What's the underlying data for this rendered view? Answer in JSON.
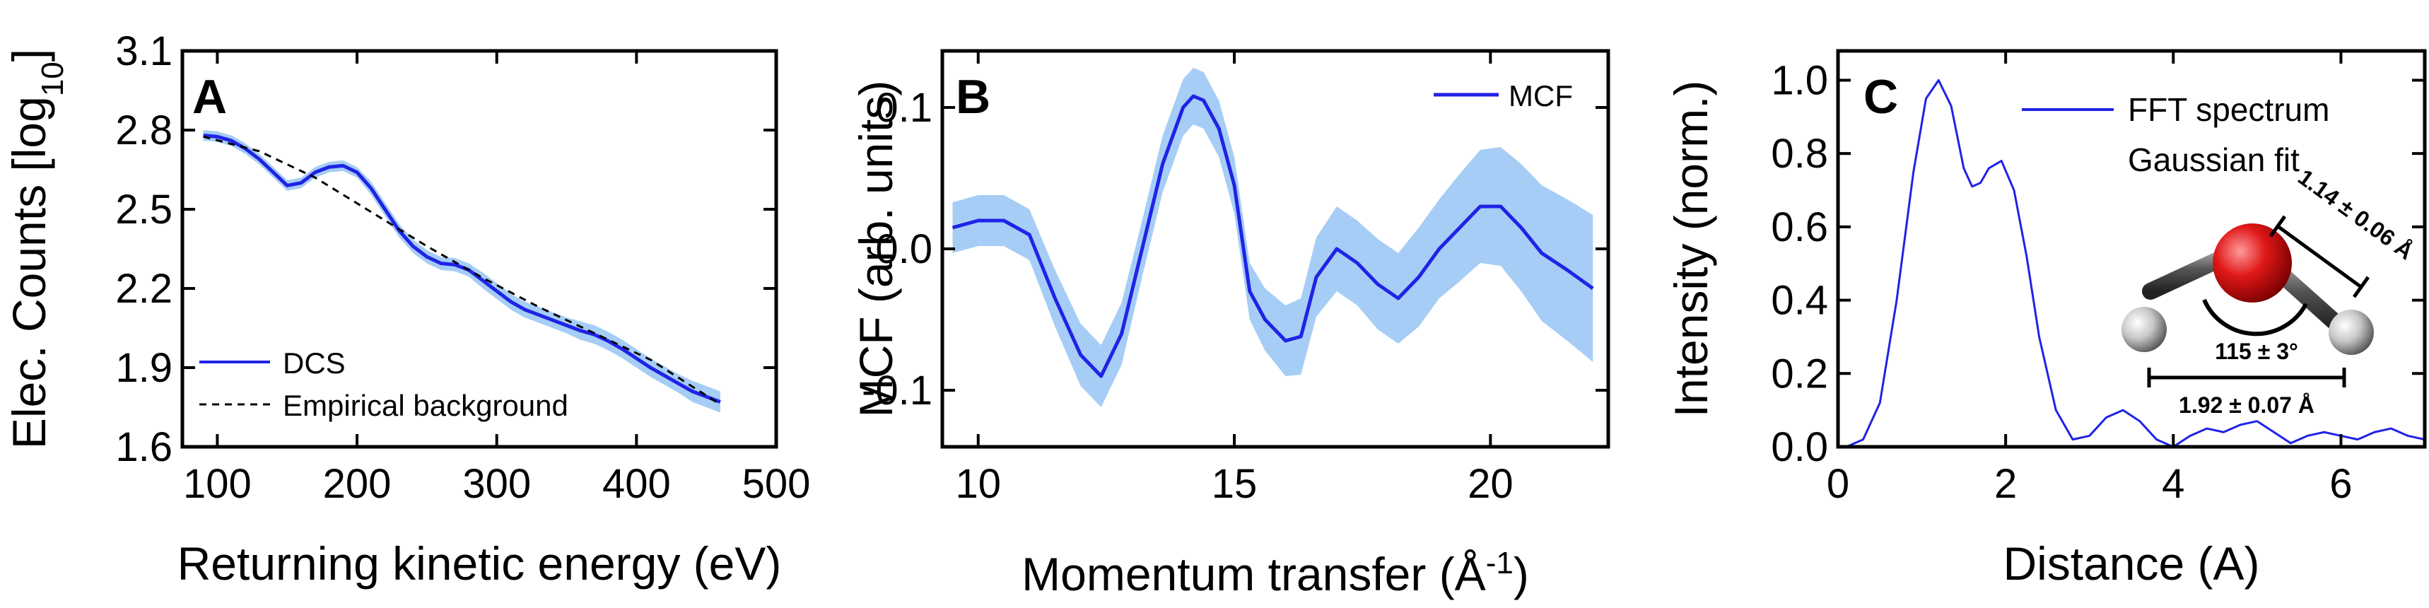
{
  "colors": {
    "line": "#1f23e6",
    "band": "#a6cdf5",
    "background_line": "#000000"
  },
  "chart_data": [
    {
      "type": "line",
      "panel_label": "A",
      "xlabel": "Returning kinetic energy (eV)",
      "ylabel_main": "Elec. Counts [log",
      "ylabel_sub": "10",
      "ylabel_end": "]",
      "xlim": [
        75,
        500
      ],
      "ylim": [
        1.6,
        3.1
      ],
      "x_ticks": [
        "100",
        "200",
        "300",
        "400",
        "500"
      ],
      "x_tick_values": [
        100,
        200,
        300,
        400,
        500
      ],
      "y_ticks": [
        "1.6",
        "1.9",
        "2.2",
        "2.5",
        "2.8",
        "3.1"
      ],
      "y_tick_values": [
        1.6,
        1.9,
        2.2,
        2.5,
        2.8,
        3.1
      ],
      "legend": {
        "position": "bottom-left",
        "entries": [
          "DCS",
          "Empirical background"
        ]
      },
      "series": [
        {
          "name": "DCS",
          "style": "solid-with-band",
          "x": [
            90,
            100,
            110,
            120,
            130,
            140,
            150,
            160,
            170,
            180,
            190,
            200,
            210,
            220,
            230,
            240,
            250,
            260,
            270,
            280,
            290,
            300,
            310,
            320,
            330,
            340,
            350,
            360,
            370,
            380,
            390,
            400,
            410,
            420,
            430,
            440,
            450,
            460
          ],
          "y": [
            2.78,
            2.775,
            2.76,
            2.73,
            2.69,
            2.64,
            2.59,
            2.6,
            2.64,
            2.66,
            2.665,
            2.64,
            2.58,
            2.5,
            2.42,
            2.36,
            2.32,
            2.295,
            2.29,
            2.27,
            2.23,
            2.19,
            2.15,
            2.12,
            2.1,
            2.08,
            2.06,
            2.04,
            2.025,
            2.0,
            1.97,
            1.935,
            1.9,
            1.87,
            1.84,
            1.81,
            1.79,
            1.77
          ],
          "band": [
            0.02,
            0.02,
            0.02,
            0.02,
            0.02,
            0.02,
            0.02,
            0.02,
            0.02,
            0.02,
            0.02,
            0.02,
            0.025,
            0.025,
            0.025,
            0.025,
            0.025,
            0.025,
            0.025,
            0.025,
            0.03,
            0.03,
            0.03,
            0.03,
            0.03,
            0.03,
            0.03,
            0.035,
            0.035,
            0.035,
            0.035,
            0.035,
            0.035,
            0.035,
            0.035,
            0.04,
            0.04,
            0.04
          ]
        },
        {
          "name": "Empirical background",
          "style": "dashed",
          "x": [
            90,
            130,
            170,
            210,
            250,
            290,
            330,
            370,
            410,
            460
          ],
          "y": [
            2.775,
            2.72,
            2.62,
            2.49,
            2.36,
            2.24,
            2.13,
            2.03,
            1.93,
            1.76
          ]
        }
      ]
    },
    {
      "type": "line",
      "panel_label": "B",
      "xlabel_main": "Momentum transfer (Å",
      "xlabel_sup": "-1",
      "xlabel_end": ")",
      "ylabel": "MCF (arb. units)",
      "xlim": [
        9.3,
        22.3
      ],
      "ylim": [
        -0.14,
        0.14
      ],
      "x_ticks": [
        "10",
        "15",
        "20"
      ],
      "x_tick_values": [
        10,
        15,
        20
      ],
      "y_ticks": [
        "-0.1",
        "0.0",
        "0.1"
      ],
      "y_tick_values": [
        -0.1,
        0.0,
        0.1
      ],
      "legend": {
        "position": "top-right",
        "entries": [
          "MCF"
        ]
      },
      "series": [
        {
          "name": "MCF",
          "style": "solid-with-band",
          "x": [
            9.5,
            10.0,
            10.5,
            11.0,
            11.5,
            12.0,
            12.4,
            12.8,
            13.2,
            13.6,
            14.0,
            14.2,
            14.4,
            14.7,
            15.0,
            15.3,
            15.6,
            16.0,
            16.3,
            16.6,
            17.0,
            17.4,
            17.8,
            18.2,
            18.6,
            19.0,
            19.4,
            19.8,
            20.2,
            20.6,
            21.0,
            21.5,
            22.0
          ],
          "y": [
            0.015,
            0.02,
            0.02,
            0.01,
            -0.035,
            -0.075,
            -0.09,
            -0.06,
            0.0,
            0.06,
            0.1,
            0.108,
            0.105,
            0.085,
            0.045,
            -0.03,
            -0.05,
            -0.065,
            -0.062,
            -0.02,
            0.0,
            -0.01,
            -0.025,
            -0.035,
            -0.02,
            0.0,
            0.015,
            0.03,
            0.03,
            0.015,
            -0.003,
            -0.015,
            -0.028
          ],
          "band": [
            0.018,
            0.018,
            0.018,
            0.018,
            0.02,
            0.022,
            0.022,
            0.022,
            0.02,
            0.02,
            0.02,
            0.02,
            0.02,
            0.02,
            0.02,
            0.02,
            0.022,
            0.025,
            0.027,
            0.028,
            0.03,
            0.03,
            0.032,
            0.032,
            0.035,
            0.035,
            0.038,
            0.04,
            0.042,
            0.045,
            0.048,
            0.05,
            0.052
          ]
        }
      ]
    },
    {
      "type": "line",
      "panel_label": "C",
      "xlabel": "Distance (A)",
      "ylabel": "Intensity (norm.)",
      "xlim": [
        0,
        7
      ],
      "ylim": [
        0,
        1.08
      ],
      "x_ticks": [
        "0",
        "2",
        "4",
        "6"
      ],
      "x_tick_values": [
        0,
        2,
        4,
        6
      ],
      "y_ticks": [
        "0.0",
        "0.2",
        "0.4",
        "0.6",
        "0.8",
        "1.0"
      ],
      "y_tick_values": [
        0,
        0.2,
        0.4,
        0.6,
        0.8,
        1.0
      ],
      "legend": {
        "position": "top-right",
        "entries": [
          "FFT spectrum",
          "Gaussian fit"
        ]
      },
      "series": [
        {
          "name": "FFT spectrum",
          "style": "solid",
          "x": [
            0.1,
            0.3,
            0.5,
            0.7,
            0.9,
            1.05,
            1.2,
            1.35,
            1.5,
            1.6,
            1.7,
            1.8,
            1.95,
            2.1,
            2.25,
            2.4,
            2.6,
            2.8,
            3.0,
            3.2,
            3.4,
            3.6,
            3.8,
            4.0,
            4.2,
            4.4,
            4.6,
            4.8,
            5.0,
            5.2,
            5.4,
            5.6,
            5.8,
            6.0,
            6.2,
            6.4,
            6.6,
            6.8,
            7.0
          ],
          "y": [
            0.0,
            0.02,
            0.12,
            0.4,
            0.75,
            0.95,
            1.0,
            0.93,
            0.76,
            0.71,
            0.72,
            0.76,
            0.78,
            0.7,
            0.52,
            0.3,
            0.1,
            0.02,
            0.03,
            0.08,
            0.1,
            0.07,
            0.02,
            0.0,
            0.03,
            0.05,
            0.04,
            0.06,
            0.07,
            0.04,
            0.01,
            0.03,
            0.04,
            0.03,
            0.02,
            0.04,
            0.05,
            0.03,
            0.02
          ]
        }
      ],
      "annotations": {
        "bond_length": "1.14 ± 0.06 Å",
        "angle": "115 ± 3°",
        "distance": "1.92 ± 0.07 Å"
      }
    }
  ]
}
